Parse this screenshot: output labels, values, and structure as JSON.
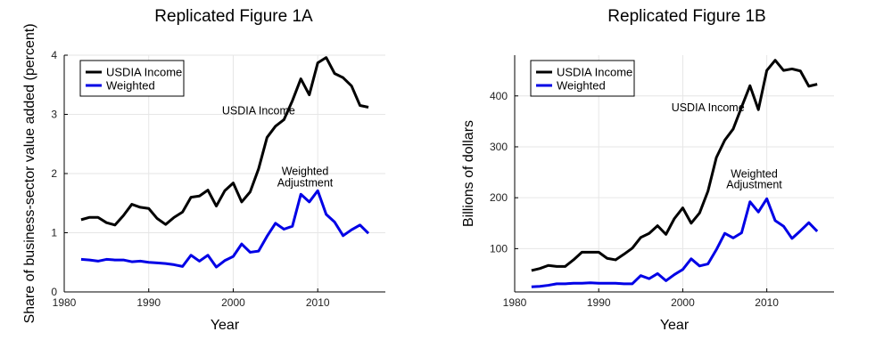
{
  "chart_data": [
    {
      "type": "line",
      "title": "Replicated Figure 1A",
      "xlabel": "Year",
      "ylabel": "Share of business-sector value added (percent)",
      "xlim": [
        1980,
        2018
      ],
      "ylim": [
        0,
        4
      ],
      "xticks": [
        1980,
        1990,
        2000,
        2010
      ],
      "yticks": [
        0,
        1,
        2,
        3,
        4
      ],
      "grid": true,
      "legend": "top-left",
      "x": [
        1982,
        1983,
        1984,
        1985,
        1986,
        1987,
        1988,
        1989,
        1990,
        1991,
        1992,
        1993,
        1994,
        1995,
        1996,
        1997,
        1998,
        1999,
        2000,
        2001,
        2002,
        2003,
        2004,
        2005,
        2006,
        2007,
        2008,
        2009,
        2010,
        2011,
        2012,
        2013,
        2014,
        2015,
        2016
      ],
      "series": [
        {
          "name": "USDIA Income",
          "color": "#000000",
          "values": [
            1.22,
            1.26,
            1.26,
            1.17,
            1.13,
            1.29,
            1.48,
            1.43,
            1.41,
            1.24,
            1.14,
            1.26,
            1.35,
            1.6,
            1.62,
            1.72,
            1.45,
            1.71,
            1.84,
            1.52,
            1.69,
            2.08,
            2.61,
            2.8,
            2.91,
            3.23,
            3.6,
            3.33,
            3.87,
            3.96,
            3.69,
            3.62,
            3.48,
            3.15,
            3.12
          ]
        },
        {
          "name": "Weighted",
          "color": "#0000e6",
          "values": [
            0.55,
            0.54,
            0.52,
            0.55,
            0.54,
            0.54,
            0.51,
            0.52,
            0.5,
            0.49,
            0.48,
            0.46,
            0.43,
            0.62,
            0.52,
            0.62,
            0.42,
            0.53,
            0.6,
            0.81,
            0.67,
            0.69,
            0.94,
            1.16,
            1.06,
            1.11,
            1.65,
            1.52,
            1.71,
            1.31,
            1.18,
            0.95,
            1.05,
            1.13,
            0.99
          ]
        }
      ],
      "annotations": [
        {
          "text": "USDIA Income",
          "x": 2003,
          "y": 3.0
        },
        {
          "text": "Weighted",
          "x": 2008.5,
          "y": 1.98
        },
        {
          "text": "Adjustment",
          "x": 2008.5,
          "y": 1.78
        }
      ]
    },
    {
      "type": "line",
      "title": "Replicated Figure 1B",
      "xlabel": "Year",
      "ylabel": "Billions of dollars",
      "xlim": [
        1980,
        2018
      ],
      "ylim": [
        15,
        480
      ],
      "xticks": [
        1980,
        1990,
        2000,
        2010
      ],
      "yticks": [
        100,
        200,
        300,
        400
      ],
      "grid": true,
      "legend": "top-left",
      "x": [
        1982,
        1983,
        1984,
        1985,
        1986,
        1987,
        1988,
        1989,
        1990,
        1991,
        1992,
        1993,
        1994,
        1995,
        1996,
        1997,
        1998,
        1999,
        2000,
        2001,
        2002,
        2003,
        2004,
        2005,
        2006,
        2007,
        2008,
        2009,
        2010,
        2011,
        2012,
        2013,
        2014,
        2015,
        2016
      ],
      "series": [
        {
          "name": "USDIA Income",
          "color": "#000000",
          "values": [
            57,
            61,
            67,
            65,
            65,
            78,
            93,
            93,
            93,
            81,
            78,
            89,
            101,
            122,
            130,
            145,
            128,
            159,
            180,
            150,
            170,
            213,
            279,
            313,
            335,
            378,
            420,
            373,
            450,
            470,
            450,
            453,
            449,
            419,
            423
          ]
        },
        {
          "name": "Weighted",
          "color": "#0000e6",
          "values": [
            25,
            26,
            28,
            31,
            31,
            32,
            32,
            33,
            32,
            32,
            32,
            31,
            31,
            47,
            41,
            51,
            37,
            49,
            59,
            80,
            66,
            70,
            98,
            130,
            121,
            131,
            192,
            172,
            198,
            155,
            144,
            120,
            135,
            151,
            134
          ]
        }
      ],
      "annotations": [
        {
          "text": "USDIA Income",
          "x": 2003,
          "y": 370
        },
        {
          "text": "Weighted",
          "x": 2008.5,
          "y": 240
        },
        {
          "text": "Adjustment",
          "x": 2008.5,
          "y": 219
        }
      ]
    }
  ]
}
